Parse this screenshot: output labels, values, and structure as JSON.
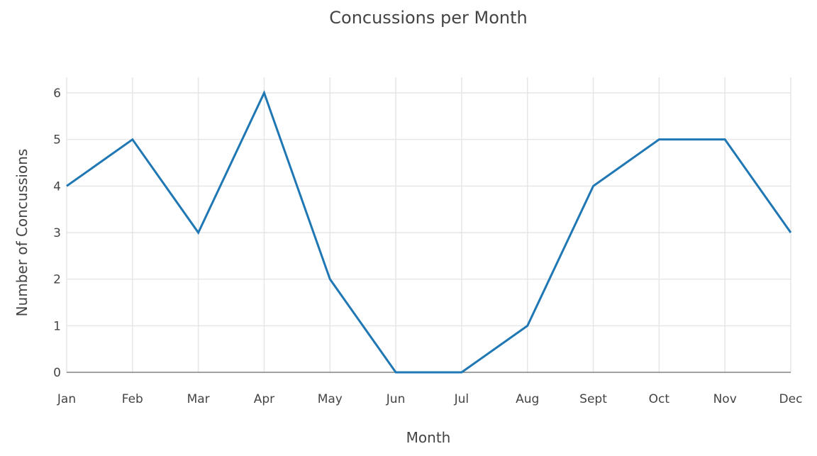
{
  "chart_data": {
    "type": "line",
    "title": "Concussions per Month",
    "xlabel": "Month",
    "ylabel": "Number of Concussions",
    "categories": [
      "Jan",
      "Feb",
      "Mar",
      "Apr",
      "May",
      "Jun",
      "Jul",
      "Aug",
      "Sept",
      "Oct",
      "Nov",
      "Dec"
    ],
    "series": [
      {
        "values": [
          4,
          5,
          3,
          6,
          2,
          0,
          0,
          1,
          4,
          5,
          5,
          3
        ],
        "color": "#1f77b4"
      }
    ],
    "ylim": [
      0,
      6
    ],
    "yticks": [
      0,
      1,
      2,
      3,
      4,
      5,
      6
    ],
    "grid": true,
    "legend": "none"
  }
}
